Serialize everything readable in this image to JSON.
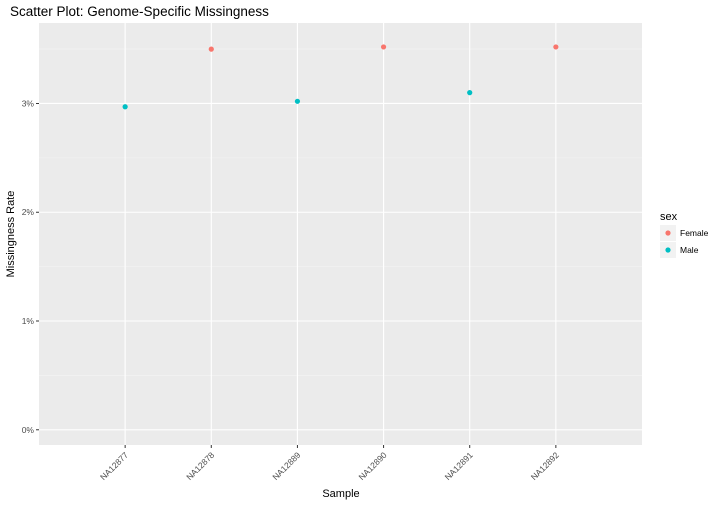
{
  "chart_data": {
    "type": "scatter",
    "title": "Scatter Plot: Genome-Specific Missingness",
    "xlabel": "Sample",
    "ylabel": "Missingness Rate",
    "categories": [
      "NA12877",
      "NA12878",
      "NA12889",
      "NA12890",
      "NA12891",
      "NA12892"
    ],
    "yticks": [
      0,
      1,
      2,
      3
    ],
    "ytick_labels": [
      "0%",
      "1%",
      "2%",
      "3%"
    ],
    "ylim": [
      -0.14,
      3.74
    ],
    "grid": true,
    "points": [
      {
        "x": "NA12877",
        "y": 2.97,
        "sex": "Male"
      },
      {
        "x": "NA12878",
        "y": 3.5,
        "sex": "Female"
      },
      {
        "x": "NA12889",
        "y": 3.02,
        "sex": "Male"
      },
      {
        "x": "NA12890",
        "y": 3.52,
        "sex": "Female"
      },
      {
        "x": "NA12891",
        "y": 3.1,
        "sex": "Male"
      },
      {
        "x": "NA12892",
        "y": 3.52,
        "sex": "Female"
      }
    ],
    "legend": {
      "title": "sex",
      "position": "right",
      "entries": [
        {
          "label": "Female",
          "color": "#F8766D"
        },
        {
          "label": "Male",
          "color": "#00BFC4"
        }
      ]
    },
    "colors": {
      "panel_background": "#EBEBEB",
      "grid_major": "#FFFFFF",
      "grid_minor": "#F5F5F5",
      "tick_text": "#4D4D4D"
    }
  }
}
